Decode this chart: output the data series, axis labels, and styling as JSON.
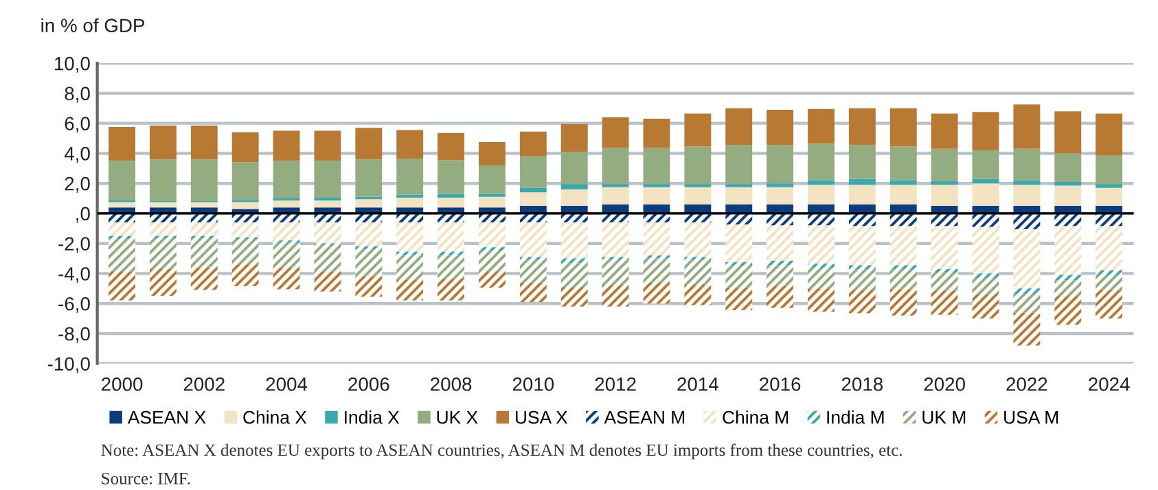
{
  "chart_data": {
    "type": "bar",
    "stacked": true,
    "ylabel": "in % of GDP",
    "categories": [
      "2000",
      null,
      "2002",
      null,
      "2004",
      null,
      "2006",
      null,
      "2008",
      null,
      "2010",
      null,
      "2012",
      null,
      "2014",
      null,
      "2016",
      null,
      "2018",
      null,
      "2020",
      null,
      "2022",
      null,
      "2024"
    ],
    "ylim": [
      -10,
      10
    ],
    "yticks": [
      {
        "value": -10,
        "label": "-10,0"
      },
      {
        "value": -8,
        "label": "-8,0"
      },
      {
        "value": -6,
        "label": "-6,0"
      },
      {
        "value": -4,
        "label": "-4,0"
      },
      {
        "value": -2,
        "label": "-2,0"
      },
      {
        "value": 0,
        "label": ",0"
      },
      {
        "value": 2,
        "label": "2,0"
      },
      {
        "value": 4,
        "label": "4,0"
      },
      {
        "value": 6,
        "label": "6,0"
      },
      {
        "value": 8,
        "label": "8,0"
      },
      {
        "value": 10,
        "label": "10,0"
      }
    ],
    "grid": "y",
    "legend": "bottom",
    "series": [
      {
        "name": "ASEAN X",
        "color": "#0b3d7e",
        "values": [
          0.4,
          0.4,
          0.4,
          0.3,
          0.4,
          0.4,
          0.4,
          0.4,
          0.4,
          0.4,
          0.5,
          0.5,
          0.6,
          0.6,
          0.6,
          0.6,
          0.6,
          0.6,
          0.6,
          0.6,
          0.5,
          0.5,
          0.5,
          0.5,
          0.5
        ]
      },
      {
        "name": "China X",
        "color": "#f3e3c0",
        "values": [
          0.35,
          0.35,
          0.35,
          0.45,
          0.45,
          0.45,
          0.55,
          0.65,
          0.65,
          0.7,
          0.9,
          1.1,
          1.15,
          1.15,
          1.15,
          1.15,
          1.15,
          1.3,
          1.3,
          1.3,
          1.4,
          1.5,
          1.4,
          1.35,
          1.2
        ]
      },
      {
        "name": "India X",
        "color": "#3aa8ae",
        "values": [
          0.15,
          0.1,
          0.1,
          0.15,
          0.15,
          0.2,
          0.15,
          0.2,
          0.25,
          0.2,
          0.3,
          0.35,
          0.2,
          0.2,
          0.2,
          0.2,
          0.25,
          0.3,
          0.4,
          0.3,
          0.25,
          0.3,
          0.3,
          0.25,
          0.25
        ]
      },
      {
        "name": "UK X",
        "color": "#93ad80",
        "values": [
          2.6,
          2.75,
          2.75,
          2.5,
          2.5,
          2.45,
          2.5,
          2.4,
          2.25,
          1.9,
          2.1,
          2.15,
          2.4,
          2.4,
          2.5,
          2.6,
          2.55,
          2.45,
          2.25,
          2.25,
          2.15,
          1.9,
          2.1,
          1.9,
          1.9
        ]
      },
      {
        "name": "USA X",
        "color": "#b87a33",
        "values": [
          2.25,
          2.25,
          2.25,
          2.0,
          2.0,
          2.0,
          2.1,
          1.9,
          1.8,
          1.55,
          1.65,
          1.85,
          2.05,
          1.95,
          2.2,
          2.45,
          2.35,
          2.3,
          2.45,
          2.55,
          2.35,
          2.55,
          2.95,
          2.8,
          2.8
        ]
      },
      {
        "name": "ASEAN M",
        "color": "#0b3d7e",
        "values": [
          -0.6,
          -0.6,
          -0.6,
          -0.6,
          -0.6,
          -0.6,
          -0.6,
          -0.6,
          -0.6,
          -0.6,
          -0.6,
          -0.6,
          -0.6,
          -0.6,
          -0.6,
          -0.75,
          -0.8,
          -0.8,
          -0.85,
          -0.85,
          -0.85,
          -0.9,
          -1.05,
          -0.85,
          -0.85
        ]
      },
      {
        "name": "China M",
        "color": "#f3e3c0",
        "values": [
          -0.9,
          -0.9,
          -0.9,
          -1.0,
          -1.2,
          -1.4,
          -1.6,
          -1.95,
          -1.95,
          -1.65,
          -2.3,
          -2.4,
          -2.3,
          -2.2,
          -2.3,
          -2.5,
          -2.35,
          -2.55,
          -2.6,
          -2.6,
          -2.85,
          -3.1,
          -3.95,
          -3.25,
          -2.95
        ]
      },
      {
        "name": "India M",
        "color": "#3aa8ae",
        "values": [
          -0.2,
          -0.15,
          -0.15,
          -0.15,
          -0.15,
          -0.1,
          -0.2,
          -0.25,
          -0.25,
          -0.25,
          -0.2,
          -0.3,
          -0.2,
          -0.2,
          -0.2,
          -0.25,
          -0.3,
          -0.3,
          -0.25,
          -0.25,
          -0.25,
          -0.3,
          -0.35,
          -0.35,
          -0.3
        ]
      },
      {
        "name": "UK M",
        "color": "#93ad80",
        "values": [
          -2.15,
          -2.05,
          -1.95,
          -1.65,
          -1.65,
          -1.8,
          -1.8,
          -1.6,
          -1.55,
          -1.35,
          -1.5,
          -1.6,
          -1.7,
          -1.6,
          -1.65,
          -1.45,
          -1.4,
          -1.35,
          -1.4,
          -1.35,
          -1.2,
          -1.1,
          -1.25,
          -1.05,
          -1.0
        ]
      },
      {
        "name": "USA M",
        "color": "#b87a33",
        "values": [
          -1.95,
          -1.8,
          -1.5,
          -1.45,
          -1.45,
          -1.3,
          -1.35,
          -1.4,
          -1.45,
          -1.1,
          -1.3,
          -1.3,
          -1.4,
          -1.4,
          -1.35,
          -1.5,
          -1.45,
          -1.55,
          -1.55,
          -1.75,
          -1.6,
          -1.6,
          -2.2,
          -1.9,
          -1.9
        ]
      }
    ],
    "annotations": [
      "Note: ASEAN X denotes EU exports to ASEAN countries, ASEAN M denotes EU imports from these countries, etc.",
      "Source: IMF."
    ]
  }
}
